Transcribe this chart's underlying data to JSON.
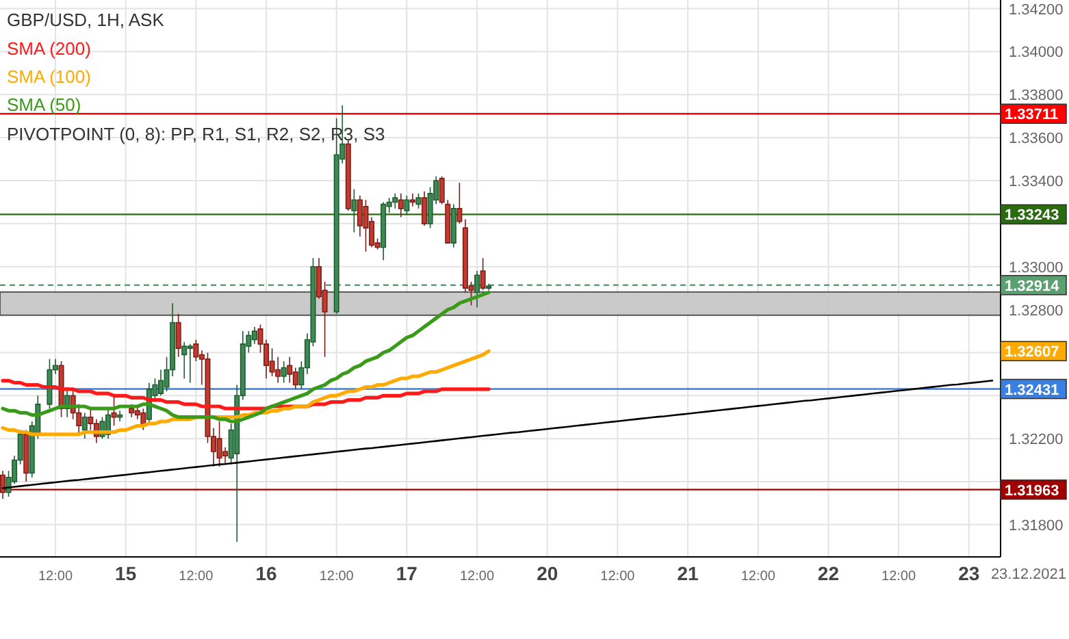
{
  "chart_data": {
    "type": "candlestick",
    "title": "GBP/USD, 1H, ASK",
    "annotations": [
      "PIVOTPOINT (0, 8): PP, R1, S1, R2, S2, R3, S3",
      "23.12.2021",
      "1.32607"
    ],
    "categories": [
      null,
      null,
      null,
      null,
      null,
      null,
      null,
      null,
      null,
      "12:00",
      null,
      null,
      null,
      null,
      null,
      null,
      null,
      null,
      null,
      null,
      null,
      "15",
      null,
      null,
      null,
      null,
      null,
      null,
      null,
      null,
      null,
      null,
      null,
      "12:00",
      null,
      null,
      null,
      null,
      null,
      null,
      null,
      null,
      null,
      null,
      null,
      "16",
      null,
      null,
      null,
      null,
      null,
      null,
      null,
      null,
      null,
      null,
      null,
      "12:00",
      null,
      null,
      null,
      null,
      null,
      null,
      null,
      null,
      null,
      null,
      null,
      "17",
      null,
      null,
      null,
      null,
      null,
      null,
      null,
      null,
      null,
      null,
      null,
      "12:00",
      null,
      null,
      null,
      null,
      null,
      null,
      null,
      null,
      null,
      null,
      null,
      "20",
      null,
      null,
      null,
      null,
      null,
      null,
      null,
      null,
      null,
      null,
      null,
      "12:00",
      null,
      null,
      null,
      null,
      null,
      null,
      null,
      null,
      null,
      null,
      null,
      "21",
      null,
      null,
      null,
      null,
      null,
      null,
      null,
      null,
      null,
      null,
      null,
      "12:00",
      null,
      null,
      null,
      null,
      null,
      null,
      null,
      null,
      null,
      null,
      null,
      "22",
      null,
      null,
      null,
      null,
      null,
      null,
      null,
      null,
      null,
      null,
      null,
      "12:00",
      null,
      null,
      null,
      null,
      null,
      null,
      null,
      null,
      null,
      null,
      null,
      "23",
      null,
      null,
      null,
      null
    ],
    "ylim": [
      1.3165,
      1.3424
    ],
    "yticks": [
      {
        "value": 1.318,
        "label": "1.31800"
      },
      {
        "value": 1.32,
        "label": null
      },
      {
        "value": 1.322,
        "label": "1.32200"
      },
      {
        "value": 1.324,
        "label": null
      },
      {
        "value": 1.326,
        "label": null
      },
      {
        "value": 1.328,
        "label": "1.32800"
      },
      {
        "value": 1.33,
        "label": "1.33000"
      },
      {
        "value": 1.332,
        "label": null
      },
      {
        "value": 1.334,
        "label": "1.33400"
      },
      {
        "value": 1.336,
        "label": "1.33600"
      },
      {
        "value": 1.338,
        "label": "1.33800"
      },
      {
        "value": 1.34,
        "label": "1.34000"
      },
      {
        "value": 1.342,
        "label": "1.34200"
      }
    ],
    "grid": true,
    "legend": "top left",
    "ohlc": [
      [
        1.3203,
        1.3205,
        1.3192,
        1.3195
      ],
      [
        1.3195,
        1.3205,
        1.3193,
        1.3202
      ],
      [
        1.32,
        1.3212,
        1.3199,
        1.321
      ],
      [
        1.321,
        1.3224,
        1.3208,
        1.3222
      ],
      [
        1.3222,
        1.3224,
        1.32,
        1.3204
      ],
      [
        1.3204,
        1.3228,
        1.3202,
        1.3226
      ],
      [
        1.3222,
        1.324,
        1.322,
        1.3236
      ],
      null,
      [
        1.3236,
        1.3257,
        1.3234,
        1.3252
      ],
      [
        1.3252,
        1.3257,
        1.325,
        1.3254
      ],
      [
        1.3254,
        1.3256,
        1.323,
        1.3234
      ],
      [
        1.3234,
        1.3244,
        1.323,
        1.324
      ],
      [
        1.324,
        1.3243,
        1.3229,
        1.3232
      ],
      [
        1.3232,
        1.3236,
        1.3222,
        1.3226
      ],
      [
        1.3224,
        1.3232,
        1.322,
        1.323
      ],
      [
        1.323,
        1.3234,
        1.3224,
        1.3227
      ],
      [
        1.3227,
        1.3229,
        1.3218,
        1.3221
      ],
      [
        1.3221,
        1.323,
        1.322,
        1.3228
      ],
      [
        1.3222,
        1.3234,
        1.322,
        1.3231
      ],
      [
        1.3232,
        1.324,
        1.3226,
        1.323
      ],
      [
        1.323,
        1.3233,
        1.3228,
        1.3231
      ],
      null,
      [
        1.3234,
        1.3236,
        1.323,
        1.3232
      ],
      [
        1.3233,
        1.3235,
        1.3229,
        1.3231
      ],
      [
        1.3232,
        1.3234,
        1.3224,
        1.3226
      ],
      [
        1.3229,
        1.3246,
        1.3227,
        1.3243
      ],
      [
        1.324,
        1.3248,
        1.3238,
        1.3245
      ],
      [
        1.3241,
        1.3252,
        1.324,
        1.3247
      ],
      [
        1.3244,
        1.3258,
        1.3242,
        1.3252
      ],
      [
        1.3252,
        1.3283,
        1.3249,
        1.3274
      ],
      [
        1.3274,
        1.3278,
        1.3258,
        1.3262
      ],
      [
        1.3259,
        1.3265,
        1.3248,
        1.3263
      ],
      [
        1.3262,
        1.3264,
        1.3246,
        1.3263
      ],
      [
        1.3264,
        1.3266,
        1.3256,
        1.3258
      ],
      [
        1.3259,
        1.3261,
        1.3245,
        1.3257
      ],
      [
        1.3257,
        1.326,
        1.3218,
        1.3221
      ],
      [
        1.3221,
        1.3225,
        1.3207,
        1.3214
      ],
      [
        1.322,
        1.3228,
        1.3207,
        1.3211
      ],
      [
        1.3214,
        1.3216,
        1.3208,
        1.3212
      ],
      [
        1.3211,
        1.3227,
        1.3208,
        1.3224
      ],
      [
        1.3213,
        1.3245,
        1.3172,
        1.324
      ],
      [
        1.324,
        1.327,
        1.3238,
        1.3264
      ],
      [
        1.3263,
        1.327,
        1.326,
        1.3268
      ],
      [
        1.3266,
        1.3272,
        1.3264,
        1.327
      ],
      [
        1.3271,
        1.3273,
        1.326,
        1.3264
      ],
      [
        1.3264,
        1.3266,
        1.3248,
        1.3254
      ],
      [
        1.3256,
        1.3262,
        1.3249,
        1.3251
      ],
      [
        1.3252,
        1.3258,
        1.3246,
        1.3249
      ],
      [
        1.3249,
        1.3256,
        1.3246,
        1.3253
      ],
      [
        1.3254,
        1.3258,
        1.3246,
        1.325
      ],
      [
        1.3251,
        1.3253,
        1.3243,
        1.3245
      ],
      [
        1.3245,
        1.3256,
        1.3243,
        1.3253
      ],
      [
        1.3253,
        1.3269,
        1.325,
        1.3266
      ],
      [
        1.3265,
        1.3304,
        1.3263,
        1.33
      ],
      [
        1.33,
        1.3304,
        1.3285,
        1.3286
      ],
      [
        1.3289,
        1.3293,
        1.3258,
        1.3279
      ],
      null,
      [
        1.3279,
        1.3369,
        1.3278,
        1.3352
      ],
      [
        1.335,
        1.3375,
        1.3348,
        1.3357
      ],
      [
        1.3357,
        1.3359,
        1.3326,
        1.3327
      ],
      [
        1.3326,
        1.3336,
        1.3316,
        1.3331
      ],
      [
        1.3331,
        1.3333,
        1.3314,
        1.3319
      ],
      [
        1.3328,
        1.3331,
        1.3307,
        1.3318
      ],
      [
        1.3321,
        1.3323,
        1.3309,
        1.331
      ],
      [
        1.3311,
        1.3313,
        1.3308,
        1.3309
      ],
      [
        1.3309,
        1.333,
        1.3303,
        1.3329
      ],
      [
        1.3328,
        1.3332,
        1.3325,
        1.333
      ],
      [
        1.333,
        1.3334,
        1.3327,
        1.3332
      ],
      [
        1.3331,
        1.3334,
        1.3323,
        1.3327
      ],
      [
        1.3326,
        1.3333,
        1.3324,
        1.3331
      ],
      [
        1.3331,
        1.3334,
        1.3328,
        1.333
      ],
      [
        1.3329,
        1.3334,
        1.3327,
        1.3332
      ],
      [
        1.3332,
        1.3335,
        1.3319,
        1.332
      ],
      [
        1.332,
        1.3337,
        1.3318,
        1.3334
      ],
      [
        1.3331,
        1.3342,
        1.3329,
        1.334
      ],
      [
        1.3341,
        1.3342,
        1.3329,
        1.333
      ],
      [
        1.3329,
        1.3331,
        1.3311,
        1.3311
      ],
      [
        1.3311,
        1.3329,
        1.3309,
        1.3327
      ],
      [
        1.3327,
        1.3339,
        1.332,
        1.3321
      ],
      [
        1.3318,
        1.3322,
        1.3288,
        1.329
      ],
      [
        1.3291,
        1.3293,
        1.3282,
        1.3289
      ],
      [
        1.3288,
        1.3298,
        1.3281,
        1.3296
      ],
      [
        1.3298,
        1.3304,
        1.3289,
        1.329
      ],
      [
        1.329,
        1.3292,
        1.3289,
        1.3291
      ],
      null,
      null,
      null,
      null,
      null,
      null,
      null,
      null,
      null,
      null,
      null,
      null,
      null,
      null,
      null,
      null,
      null,
      null,
      null,
      null,
      null,
      null,
      null,
      null,
      null,
      null,
      null,
      null,
      null,
      null,
      null,
      null,
      null,
      null,
      null,
      null,
      null,
      null,
      null,
      null,
      null,
      null,
      null,
      null,
      null,
      null,
      null,
      null,
      null,
      null,
      null,
      null,
      null,
      null,
      null,
      null,
      null,
      null,
      null,
      null,
      null,
      null,
      null,
      null,
      null,
      null,
      null,
      null,
      null,
      null,
      null,
      null,
      null,
      null,
      null,
      null,
      null,
      null,
      null,
      null,
      null,
      null,
      null,
      null,
      null,
      null
    ],
    "series": [
      {
        "type": "line",
        "color": "#000000",
        "values": [
          1.3197,
          1.31973,
          1.31976,
          1.31979,
          1.31982,
          1.31985,
          1.31988,
          1.31991,
          1.31994,
          1.31997,
          1.32,
          1.32003,
          1.32006,
          1.32008,
          1.32011,
          1.32014,
          1.32017,
          1.3202,
          1.32023,
          1.32026,
          1.32029,
          1.32032,
          1.32035,
          1.32038,
          1.32041,
          1.32044,
          1.32047,
          1.3205,
          1.32053,
          1.32056,
          1.32059,
          1.32062,
          1.32065,
          1.32068,
          1.32071,
          1.32074,
          1.32077,
          1.3208,
          1.32082,
          1.32085,
          1.32088,
          1.32091,
          1.32094,
          1.32097,
          1.321,
          1.32103,
          1.32106,
          1.32109,
          1.32112,
          1.32115,
          1.32118,
          1.32121,
          1.32124,
          1.32127,
          1.3213,
          1.32133,
          1.32136,
          1.32139,
          1.32142,
          1.32145,
          1.32148,
          1.32151,
          1.32154,
          1.32156,
          1.32159,
          1.32162,
          1.32165,
          1.32168,
          1.32171,
          1.32174,
          1.32177,
          1.3218,
          1.32183,
          1.32186,
          1.32189,
          1.32192,
          1.32195,
          1.32198,
          1.32201,
          1.32204,
          1.32207,
          1.3221,
          1.32213,
          1.32216,
          1.32219,
          1.32222,
          1.32225,
          1.32228,
          1.3223,
          1.32233,
          1.32236,
          1.32239,
          1.32242,
          1.32245,
          1.32248,
          1.32251,
          1.32254,
          1.32257,
          1.3226,
          1.32263,
          1.32266,
          1.32269,
          1.32272,
          1.32275,
          1.32278,
          1.32281,
          1.32284,
          1.32287,
          1.3229,
          1.32293,
          1.32296,
          1.32299,
          1.32302,
          1.32304,
          1.32307,
          1.3231,
          1.32313,
          1.32316,
          1.32319,
          1.32322,
          1.32325,
          1.32328,
          1.32331,
          1.32334,
          1.32337,
          1.3234,
          1.32343,
          1.32346,
          1.32349,
          1.32352,
          1.32355,
          1.32358,
          1.32361,
          1.32364,
          1.32367,
          1.3237,
          1.32373,
          1.32376,
          1.32378,
          1.32381,
          1.32384,
          1.32387,
          1.3239,
          1.32393,
          1.32396,
          1.32399,
          1.32402,
          1.32405,
          1.32408,
          1.32411,
          1.32414,
          1.32417,
          1.3242,
          1.32423,
          1.32426,
          1.32429,
          1.32432,
          1.32435,
          1.32438,
          1.32441,
          1.32444,
          1.32447,
          1.3245,
          1.32452,
          1.32455,
          1.32458,
          1.32461,
          1.32464,
          1.32467,
          1.3247
        ]
      },
      {
        "type": "line",
        "name": "SMA (200)",
        "color": "#ff1a1a",
        "values": [
          1.3247,
          1.3247,
          1.3246,
          1.3246,
          1.3245,
          1.3245,
          1.3245,
          1.3244,
          1.3244,
          1.3244,
          1.3243,
          1.3243,
          1.3243,
          1.3242,
          1.3242,
          1.3242,
          1.3241,
          1.3241,
          1.3241,
          1.324,
          1.324,
          1.324,
          1.3239,
          1.3239,
          1.3239,
          1.3238,
          1.3238,
          1.3238,
          1.3237,
          1.3237,
          1.3237,
          1.3236,
          1.3236,
          1.3236,
          1.3235,
          1.3235,
          1.3235,
          1.3235,
          1.3234,
          1.3234,
          1.3234,
          1.3234,
          1.3234,
          1.3234,
          1.3234,
          1.3234,
          1.3235,
          1.3235,
          1.3235,
          1.3235,
          1.3235,
          1.3235,
          1.3235,
          1.3236,
          1.3236,
          1.3236,
          1.3237,
          1.3237,
          1.3237,
          1.3238,
          1.3238,
          1.3238,
          1.3239,
          1.3239,
          1.3239,
          1.324,
          1.324,
          1.324,
          1.324,
          1.3241,
          1.3241,
          1.3241,
          1.3242,
          1.3242,
          1.3242,
          1.3243,
          1.3243,
          1.3243,
          1.3243,
          1.3243,
          1.3243,
          1.3243,
          1.3243,
          1.3243,
          null,
          null,
          null,
          null,
          null,
          null,
          null,
          null,
          null,
          null,
          null,
          null,
          null,
          null,
          null,
          null,
          null,
          null,
          null,
          null,
          null,
          null,
          null,
          null,
          null,
          null,
          null,
          null,
          null,
          null,
          null,
          null,
          null,
          null,
          null,
          null,
          null,
          null,
          null,
          null,
          null,
          null,
          null,
          null,
          null,
          null,
          null,
          null,
          null,
          null,
          null,
          null,
          null,
          null,
          null,
          null,
          null,
          null,
          null,
          null,
          null,
          null,
          null,
          null,
          null,
          null,
          null,
          null,
          null,
          null,
          null,
          null,
          null,
          null,
          null,
          null,
          null,
          null,
          null,
          null,
          null,
          null,
          null,
          null,
          null,
          null
        ]
      },
      {
        "type": "line",
        "name": "SMA (100)",
        "color": "#ffaa00",
        "values": [
          1.3225,
          1.3224,
          1.3224,
          1.3223,
          1.3223,
          1.3222,
          1.3222,
          1.3222,
          1.3222,
          1.3222,
          1.3222,
          1.3222,
          1.3222,
          1.3222,
          1.3223,
          1.3223,
          1.3223,
          1.3223,
          1.3223,
          1.3223,
          1.3224,
          1.3224,
          1.3225,
          1.3226,
          1.3226,
          1.3227,
          1.3227,
          1.3228,
          1.3228,
          1.3229,
          1.3229,
          1.3229,
          1.3229,
          1.323,
          1.323,
          1.323,
          1.323,
          1.323,
          1.323,
          1.323,
          1.323,
          1.3231,
          1.3231,
          1.3232,
          1.3232,
          1.3232,
          1.3233,
          1.3233,
          1.3234,
          1.3234,
          1.3235,
          1.3235,
          1.3235,
          1.3237,
          1.3238,
          1.3239,
          1.324,
          1.324,
          1.3241,
          1.3242,
          1.3242,
          1.3243,
          1.3244,
          1.3244,
          1.3245,
          1.3245,
          1.3246,
          1.3247,
          1.3248,
          1.3248,
          1.3249,
          1.3249,
          1.325,
          1.3251,
          1.3251,
          1.3252,
          1.3253,
          1.3254,
          1.3255,
          1.3256,
          1.3257,
          1.3258,
          1.3259,
          1.32607,
          null,
          null,
          null,
          null,
          null,
          null,
          null,
          null,
          null,
          null,
          null,
          null,
          null,
          null,
          null,
          null,
          null,
          null,
          null,
          null,
          null,
          null,
          null,
          null,
          null,
          null,
          null,
          null,
          null,
          null,
          null,
          null,
          null,
          null,
          null,
          null,
          null,
          null,
          null,
          null,
          null,
          null,
          null,
          null,
          null,
          null,
          null,
          null,
          null,
          null,
          null,
          null,
          null,
          null,
          null,
          null,
          null,
          null,
          null,
          null,
          null,
          null,
          null,
          null,
          null,
          null,
          null,
          null,
          null,
          null,
          null,
          null,
          null,
          null,
          null,
          null,
          null,
          null,
          null,
          null,
          null,
          null,
          null,
          null,
          null,
          null
        ]
      },
      {
        "type": "line",
        "name": "SMA (50)",
        "color": "#3a9a1a",
        "values": [
          1.3234,
          1.3233,
          1.3233,
          1.3232,
          1.3232,
          1.3231,
          1.3231,
          1.3232,
          1.3233,
          1.3234,
          1.3235,
          1.3235,
          1.3235,
          1.3235,
          1.3235,
          1.3234,
          1.3234,
          1.3234,
          1.3234,
          1.3234,
          1.3235,
          1.3235,
          1.3235,
          1.3235,
          1.3236,
          1.3236,
          1.3235,
          1.3234,
          1.3233,
          1.3231,
          1.323,
          1.323,
          1.323,
          1.323,
          1.323,
          1.323,
          1.323,
          1.3229,
          1.3229,
          1.3228,
          1.3228,
          1.3229,
          1.323,
          1.3231,
          1.3232,
          1.3234,
          1.3235,
          1.3236,
          1.3237,
          1.3238,
          1.3239,
          1.324,
          1.3241,
          1.3243,
          1.3244,
          1.3245,
          1.3247,
          1.3248,
          1.325,
          1.3251,
          1.3253,
          1.3254,
          1.3256,
          1.3257,
          1.3258,
          1.326,
          1.3261,
          1.3263,
          1.3265,
          1.3267,
          1.3268,
          1.327,
          1.3272,
          1.3274,
          1.3276,
          1.3278,
          1.328,
          1.3281,
          1.3283,
          1.3284,
          1.3285,
          1.3286,
          1.3287,
          1.3288,
          null,
          null,
          null,
          null,
          null,
          null,
          null,
          null,
          null,
          null,
          null,
          null,
          null,
          null,
          null,
          null,
          null,
          null,
          null,
          null,
          null,
          null,
          null,
          null,
          null,
          null,
          null,
          null,
          null,
          null,
          null,
          null,
          null,
          null,
          null,
          null,
          null,
          null,
          null,
          null,
          null,
          null,
          null,
          null,
          null,
          null,
          null,
          null,
          null,
          null,
          null,
          null,
          null,
          null,
          null,
          null,
          null,
          null,
          null,
          null,
          null,
          null,
          null,
          null,
          null,
          null,
          null,
          null,
          null,
          null,
          null,
          null,
          null,
          null,
          null,
          null,
          null,
          null,
          null,
          null,
          null,
          null,
          null,
          null,
          null,
          null
        ]
      }
    ],
    "ref_lines": [
      {
        "axis": "y",
        "value": 1.33711,
        "label": "1.33711",
        "color": "#ff0000"
      },
      {
        "axis": "y",
        "value": 1.33243,
        "label": "1.33243",
        "color": "#2a6a10"
      },
      {
        "axis": "y",
        "value": 1.32914,
        "label": "1.32914",
        "color": "#5aa070",
        "line_style": "dashed"
      },
      {
        "axis": "y",
        "value": 1.32431,
        "label": "1.32431",
        "color": "#3a80e0"
      },
      {
        "axis": "y",
        "value": 1.31963,
        "label": "1.31963",
        "color": "#a00000"
      }
    ],
    "bands": [
      {
        "axis": "y",
        "from": 1.32774,
        "to": 1.32882,
        "color": "#c4c4c4"
      }
    ]
  }
}
